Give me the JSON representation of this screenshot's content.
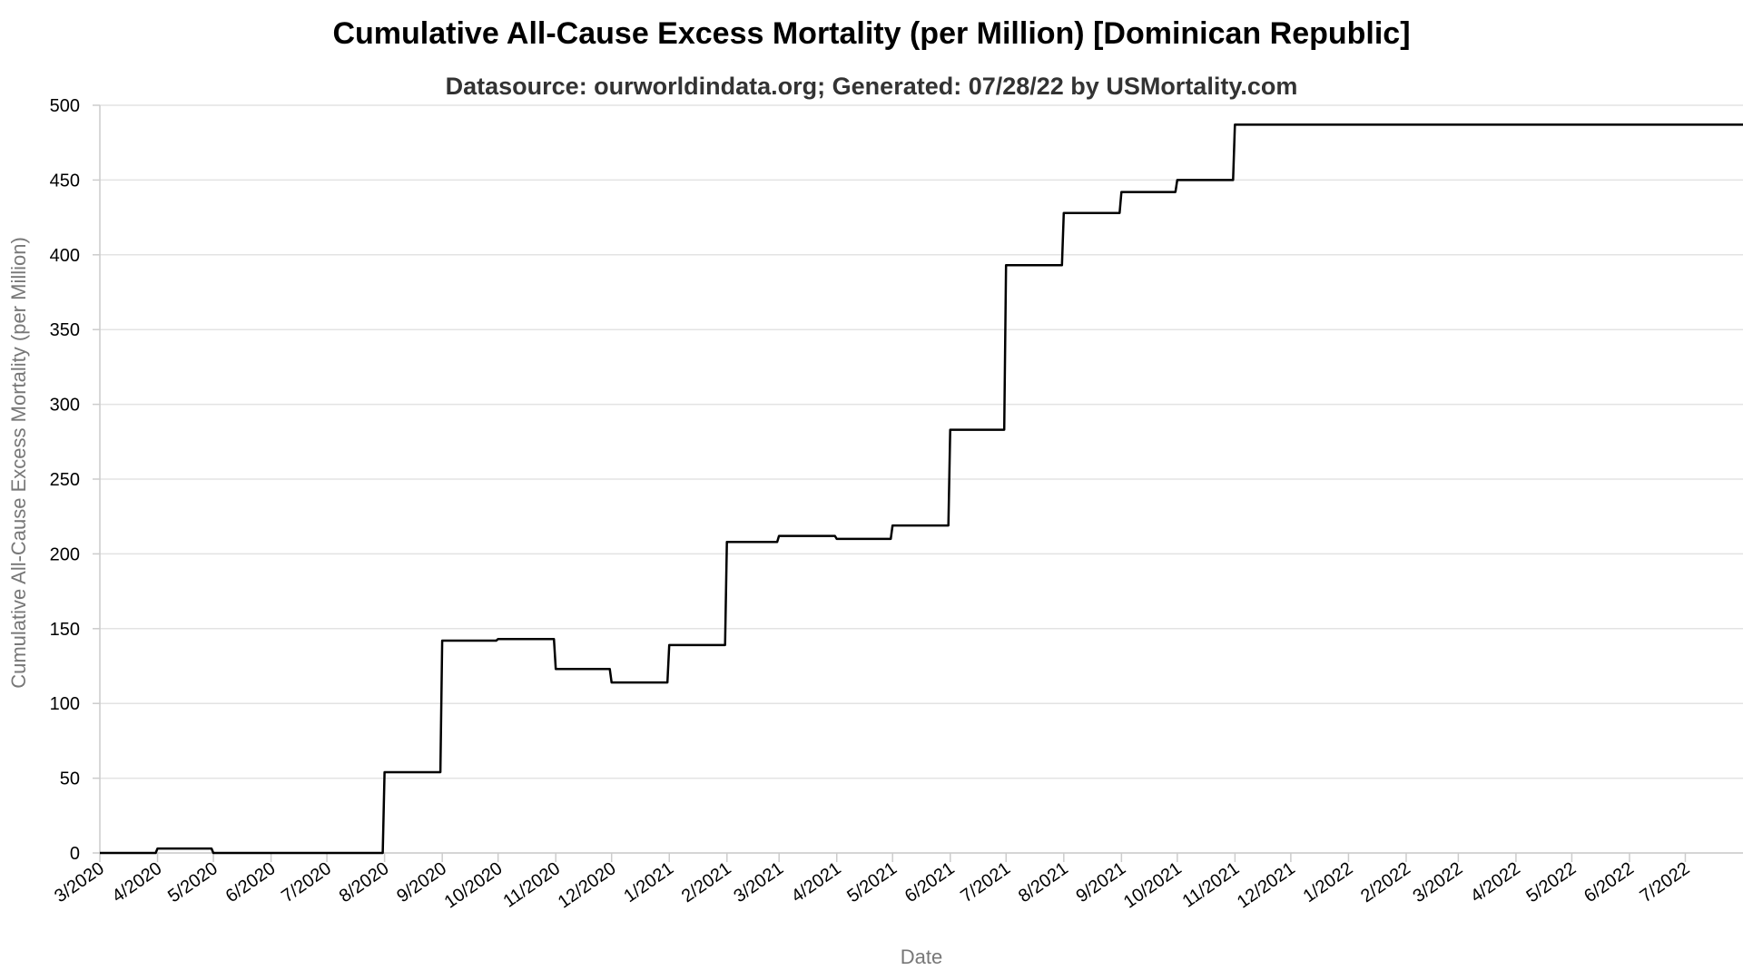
{
  "chart_data": {
    "type": "line",
    "title": "Cumulative All-Cause Excess Mortality (per Million) [Dominican Republic]",
    "subtitle": "Datasource: ourworldindata.org; Generated: 07/28/22 by USMortality.com",
    "xlabel": "Date",
    "ylabel": "Cumulative All-Cause Excess Mortality (per Million)",
    "ylim": [
      0,
      500
    ],
    "yticks": [
      0,
      50,
      100,
      150,
      200,
      250,
      300,
      350,
      400,
      450,
      500
    ],
    "xlim": [
      "2020-03-01",
      "2022-08-01"
    ],
    "xticks": [
      {
        "date": "2020-03-01",
        "label": "3/2020"
      },
      {
        "date": "2020-04-01",
        "label": "4/2020"
      },
      {
        "date": "2020-05-01",
        "label": "5/2020"
      },
      {
        "date": "2020-06-01",
        "label": "6/2020"
      },
      {
        "date": "2020-07-01",
        "label": "7/2020"
      },
      {
        "date": "2020-08-01",
        "label": "8/2020"
      },
      {
        "date": "2020-09-01",
        "label": "9/2020"
      },
      {
        "date": "2020-10-01",
        "label": "10/2020"
      },
      {
        "date": "2020-11-01",
        "label": "11/2020"
      },
      {
        "date": "2020-12-01",
        "label": "12/2020"
      },
      {
        "date": "2021-01-01",
        "label": "1/2021"
      },
      {
        "date": "2021-02-01",
        "label": "2/2021"
      },
      {
        "date": "2021-03-01",
        "label": "3/2021"
      },
      {
        "date": "2021-04-01",
        "label": "4/2021"
      },
      {
        "date": "2021-05-01",
        "label": "5/2021"
      },
      {
        "date": "2021-06-01",
        "label": "6/2021"
      },
      {
        "date": "2021-07-01",
        "label": "7/2021"
      },
      {
        "date": "2021-08-01",
        "label": "8/2021"
      },
      {
        "date": "2021-09-01",
        "label": "9/2021"
      },
      {
        "date": "2021-10-01",
        "label": "10/2021"
      },
      {
        "date": "2021-11-01",
        "label": "11/2021"
      },
      {
        "date": "2021-12-01",
        "label": "12/2021"
      },
      {
        "date": "2022-01-01",
        "label": "1/2022"
      },
      {
        "date": "2022-02-01",
        "label": "2/2022"
      },
      {
        "date": "2022-03-01",
        "label": "3/2022"
      },
      {
        "date": "2022-04-01",
        "label": "4/2022"
      },
      {
        "date": "2022-05-01",
        "label": "5/2022"
      },
      {
        "date": "2022-06-01",
        "label": "6/2022"
      },
      {
        "date": "2022-07-01",
        "label": "7/2022"
      }
    ],
    "grid": true,
    "line_color": "#000000",
    "series": [
      {
        "step": true,
        "points": [
          {
            "x": "2020-03-01",
            "y": 0
          },
          {
            "x": "2020-03-31",
            "y": 3
          },
          {
            "x": "2020-04-30",
            "y": 0
          },
          {
            "x": "2020-07-31",
            "y": 54
          },
          {
            "x": "2020-08-31",
            "y": 142
          },
          {
            "x": "2020-09-30",
            "y": 143
          },
          {
            "x": "2020-10-31",
            "y": 123
          },
          {
            "x": "2020-11-30",
            "y": 114
          },
          {
            "x": "2020-12-31",
            "y": 139
          },
          {
            "x": "2021-01-31",
            "y": 208
          },
          {
            "x": "2021-02-28",
            "y": 212
          },
          {
            "x": "2021-03-31",
            "y": 210
          },
          {
            "x": "2021-04-30",
            "y": 219
          },
          {
            "x": "2021-05-31",
            "y": 283
          },
          {
            "x": "2021-06-30",
            "y": 393
          },
          {
            "x": "2021-07-31",
            "y": 428
          },
          {
            "x": "2021-08-31",
            "y": 442
          },
          {
            "x": "2021-09-30",
            "y": 450
          },
          {
            "x": "2021-10-31",
            "y": 487
          },
          {
            "x": "2022-08-01",
            "y": 487
          }
        ]
      }
    ]
  }
}
